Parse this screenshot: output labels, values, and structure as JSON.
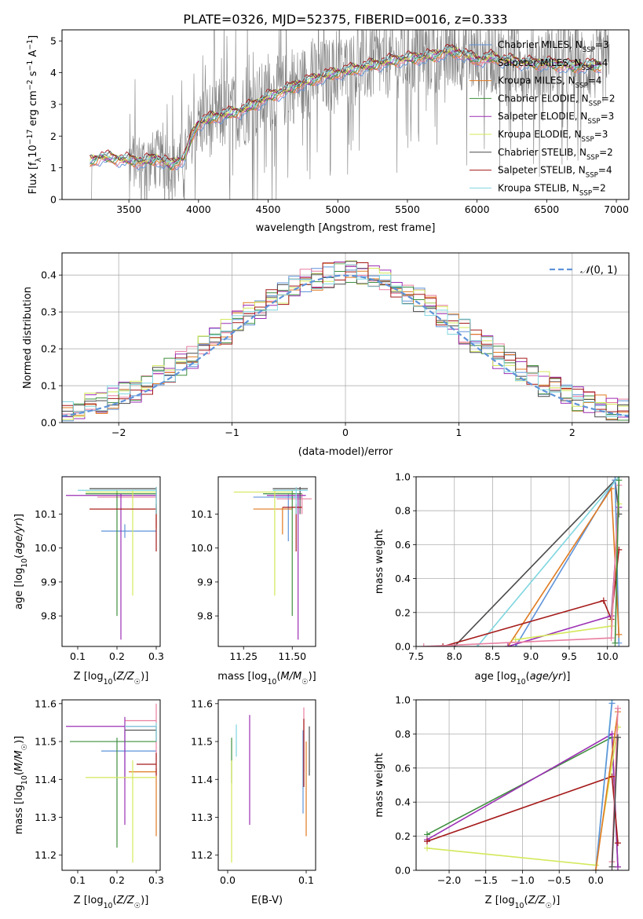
{
  "figure": {
    "title": "PLATE=0326, MJD=52375, FIBERID=0016, z=0.333"
  },
  "colors": {
    "Chabrier MILES": "#5f93d9",
    "Salpeter MILES": "#e87fa0",
    "Kroupa MILES": "#e07a21",
    "Chabrier ELODIE": "#3f8f3f",
    "Salpeter ELODIE": "#9c2fb4",
    "Kroupa ELODIE": "#d4e85a",
    "Chabrier STELIB": "#4a4a4a",
    "Salpeter STELIB": "#a51a1a",
    "Kroupa STELIB": "#7fd6df",
    "data": "#808080",
    "normal": "#5f93d9"
  },
  "chart_data": [
    {
      "id": "spectrum",
      "type": "line",
      "title": "PLATE=0326, MJD=52375, FIBERID=0016, z=0.333",
      "xlabel": "wavelength [Angstrom, rest frame]",
      "ylabel": "Flux [f_λ 10^-17 erg cm^-2 s^-1 A^-1]",
      "xlim": [
        3020,
        7090
      ],
      "ylim": [
        0,
        5.35
      ],
      "xticks": [
        3500,
        4000,
        4500,
        5000,
        5500,
        6000,
        6500,
        7000
      ],
      "yticks": [
        0,
        1,
        2,
        3,
        4,
        5
      ],
      "legend_position": "right",
      "legend": [
        {
          "label": "Chabrier MILES, N",
          "sub": "SSP",
          "tail": "=3"
        },
        {
          "label": "Salpeter MILES, N",
          "sub": "SSP",
          "tail": "=4"
        },
        {
          "label": "Kroupa MILES, N",
          "sub": "SSP",
          "tail": "=4"
        },
        {
          "label": "Chabrier ELODIE, N",
          "sub": "SSP",
          "tail": "=2"
        },
        {
          "label": "Salpeter ELODIE, N",
          "sub": "SSP",
          "tail": "=3"
        },
        {
          "label": "Kroupa ELODIE, N",
          "sub": "SSP",
          "tail": "=3"
        },
        {
          "label": "Chabrier STELIB, N",
          "sub": "SSP",
          "tail": "=2"
        },
        {
          "label": "Salpeter STELIB, N",
          "sub": "SSP",
          "tail": "=4"
        },
        {
          "label": "Kroupa STELIB, N",
          "sub": "SSP",
          "tail": "=2"
        }
      ],
      "model_continuum": {
        "x": [
          3220,
          3300,
          3400,
          3500,
          3600,
          3700,
          3800,
          3900,
          3950,
          4000,
          4100,
          4200,
          4300,
          4400,
          4500,
          4600,
          4700,
          4800,
          4900,
          5000,
          5100,
          5200,
          5300,
          5400,
          5500,
          5600,
          5700,
          5800,
          5900,
          6000,
          6100,
          6200,
          6300,
          6400,
          6500,
          6600,
          6700,
          6800,
          6900
        ],
        "y": [
          1.2,
          1.35,
          1.3,
          1.25,
          1.2,
          1.3,
          1.1,
          1.3,
          2.0,
          2.4,
          2.6,
          2.7,
          2.8,
          3.0,
          3.25,
          3.4,
          3.6,
          3.75,
          3.9,
          4.0,
          4.1,
          4.2,
          4.3,
          4.4,
          4.45,
          4.5,
          4.55,
          4.7,
          4.6,
          4.4,
          4.5,
          4.4,
          4.35,
          4.3,
          4.3,
          4.25,
          4.2,
          4.25,
          4.2
        ]
      },
      "data_range": [
        3220,
        6950
      ]
    },
    {
      "id": "residuals",
      "type": "line",
      "xlabel": "(data-model)/error",
      "ylabel": "Normed distribution",
      "xlim": [
        -2.5,
        2.5
      ],
      "ylim": [
        0,
        0.46
      ],
      "xticks": [
        -2,
        -1,
        0,
        1,
        2
      ],
      "yticks": [
        0.0,
        0.1,
        0.2,
        0.3,
        0.4
      ],
      "legend": "𝒩(0, 1)",
      "legend_position": "top-right",
      "grid": true,
      "bin_width": 0.1
    },
    {
      "id": "age-vs-Z",
      "type": "scatter",
      "xlabel": "Z [log10(Z/Z☉)]",
      "ylabel": "age [log10(age/yr)]",
      "xlim": [
        0.06,
        0.31
      ],
      "ylim": [
        9.71,
        10.21
      ],
      "xticks": [
        0.1,
        0.2,
        0.3
      ],
      "yticks": [
        9.8,
        9.9,
        10.0,
        10.1
      ],
      "points": [
        {
          "model": "Chabrier MILES",
          "x": 0.22,
          "y": 10.05,
          "xerr": [
            0.16,
            0.3
          ],
          "yerr": [
            10.03,
            10.07
          ]
        },
        {
          "model": "Salpeter MILES",
          "x": 0.3,
          "y": 10.15,
          "xerr": [
            0.15,
            0.3
          ],
          "yerr": [
            10.1,
            10.18
          ]
        },
        {
          "model": "Kroupa MILES",
          "x": 0.3,
          "y": 10.115,
          "xerr": [
            0.13,
            0.3
          ],
          "yerr": [
            10.06,
            10.12
          ]
        },
        {
          "model": "Chabrier ELODIE",
          "x": 0.2,
          "y": 10.16,
          "xerr": [
            0.12,
            0.3
          ],
          "yerr": [
            9.8,
            10.17
          ]
        },
        {
          "model": "Salpeter ELODIE",
          "x": 0.21,
          "y": 10.155,
          "xerr": [
            0.07,
            0.3
          ],
          "yerr": [
            9.73,
            10.16
          ]
        },
        {
          "model": "Kroupa ELODIE",
          "x": 0.24,
          "y": 10.165,
          "xerr": [
            0.12,
            0.3
          ],
          "yerr": [
            9.86,
            10.17
          ]
        },
        {
          "model": "Chabrier STELIB",
          "x": 0.3,
          "y": 10.175,
          "xerr": [
            0.13,
            0.3
          ],
          "yerr": [
            10.1,
            10.18
          ]
        },
        {
          "model": "Salpeter STELIB",
          "x": 0.3,
          "y": 10.115,
          "xerr": [
            0.13,
            0.3
          ],
          "yerr": [
            9.99,
            10.13
          ]
        },
        {
          "model": "Kroupa STELIB",
          "x": 0.3,
          "y": 10.17,
          "xerr": [
            0.1,
            0.3
          ],
          "yerr": [
            10.1,
            10.18
          ]
        }
      ]
    },
    {
      "id": "age-vs-mass",
      "type": "scatter",
      "xlabel": "mass [log10(M/M☉)]",
      "xlim": [
        11.12,
        11.62
      ],
      "ylim": [
        9.71,
        10.21
      ],
      "xticks": [
        11.25,
        11.5
      ],
      "yticks": [
        9.8,
        9.9,
        10.0,
        10.1
      ],
      "points": [
        {
          "model": "Chabrier MILES",
          "x": 11.48,
          "y": 10.15,
          "xerr": [
            11.3,
            11.55
          ],
          "yerr": [
            10.02,
            10.16
          ]
        },
        {
          "model": "Salpeter MILES",
          "x": 11.55,
          "y": 10.145,
          "xerr": [
            11.42,
            11.6
          ],
          "yerr": [
            10.1,
            10.16
          ]
        },
        {
          "model": "Kroupa MILES",
          "x": 11.45,
          "y": 10.115,
          "xerr": [
            11.3,
            11.5
          ],
          "yerr": [
            10.04,
            10.12
          ]
        },
        {
          "model": "Chabrier ELODIE",
          "x": 11.5,
          "y": 10.16,
          "xerr": [
            11.35,
            11.55
          ],
          "yerr": [
            9.8,
            10.17
          ]
        },
        {
          "model": "Salpeter ELODIE",
          "x": 11.53,
          "y": 10.155,
          "xerr": [
            11.37,
            11.57
          ],
          "yerr": [
            9.73,
            10.16
          ]
        },
        {
          "model": "Kroupa ELODIE",
          "x": 11.41,
          "y": 10.165,
          "xerr": [
            11.2,
            11.5
          ],
          "yerr": [
            9.86,
            10.17
          ]
        },
        {
          "model": "Chabrier STELIB",
          "x": 11.54,
          "y": 10.175,
          "xerr": [
            11.4,
            11.58
          ],
          "yerr": [
            10.1,
            10.18
          ]
        },
        {
          "model": "Salpeter STELIB",
          "x": 11.52,
          "y": 10.12,
          "xerr": [
            11.45,
            11.55
          ],
          "yerr": [
            9.99,
            10.13
          ]
        },
        {
          "model": "Kroupa STELIB",
          "x": 11.52,
          "y": 10.17,
          "xerr": [
            11.4,
            11.58
          ],
          "yerr": [
            10.1,
            10.18
          ]
        }
      ]
    },
    {
      "id": "weight-vs-age",
      "type": "line",
      "xlabel": "age [log10(age/yr)]",
      "ylabel": "mass weight",
      "xlim": [
        7.5,
        10.28
      ],
      "ylim": [
        0,
        1
      ],
      "xticks": [
        7.5,
        8.0,
        8.5,
        9.0,
        9.5,
        10.0
      ],
      "yticks": [
        0.0,
        0.2,
        0.4,
        0.6,
        0.8,
        1.0
      ],
      "grid": true,
      "series": [
        {
          "model": "Chabrier STELIB",
          "x": [
            8.0,
            10.1,
            10.15
          ],
          "y": [
            0.0,
            0.98,
            0.78
          ]
        },
        {
          "model": "Chabrier MILES",
          "x": [
            8.8,
            10.1,
            10.15
          ],
          "y": [
            0.0,
            0.98,
            0.02
          ]
        },
        {
          "model": "Kroupa MILES",
          "x": [
            8.7,
            10.05,
            10.15
          ],
          "y": [
            0.0,
            0.93,
            0.07
          ]
        },
        {
          "model": "Kroupa STELIB",
          "x": [
            8.3,
            10.15
          ],
          "y": [
            0.0,
            1.0
          ]
        },
        {
          "model": "Salpeter STELIB",
          "x": [
            7.85,
            9.95,
            10.05,
            10.15
          ],
          "y": [
            0.0,
            0.27,
            0.16,
            0.57
          ]
        },
        {
          "model": "Salpeter ELODIE",
          "x": [
            8.7,
            10.05,
            10.15
          ],
          "y": [
            0.0,
            0.18,
            0.82
          ]
        },
        {
          "model": "Kroupa ELODIE",
          "x": [
            8.8,
            10.05,
            10.15
          ],
          "y": [
            0.04,
            0.12,
            0.84
          ]
        },
        {
          "model": "Salpeter MILES",
          "x": [
            7.6,
            10.05,
            10.15
          ],
          "y": [
            0.0,
            0.05,
            0.95
          ]
        },
        {
          "model": "Chabrier ELODIE",
          "x": [
            10.1,
            10.15
          ],
          "y": [
            0.02,
            0.98
          ]
        }
      ]
    },
    {
      "id": "mass-vs-Z",
      "type": "scatter",
      "xlabel": "Z [log10(Z/Z☉)]",
      "ylabel": "mass [log10(M/M☉)]",
      "xlim": [
        0.06,
        0.31
      ],
      "ylim": [
        11.16,
        11.61
      ],
      "xticks": [
        0.1,
        0.2,
        0.3
      ],
      "yticks": [
        11.2,
        11.3,
        11.4,
        11.5,
        11.6
      ],
      "points": [
        {
          "model": "Chabrier MILES",
          "x": 0.22,
          "y": 11.475,
          "xerr": [
            0.16,
            0.3
          ],
          "yerr": [
            11.4,
            11.53
          ]
        },
        {
          "model": "Salpeter MILES",
          "x": 0.3,
          "y": 11.555,
          "xerr": [
            0.22,
            0.3
          ],
          "yerr": [
            11.45,
            11.6
          ]
        },
        {
          "model": "Kroupa MILES",
          "x": 0.3,
          "y": 11.42,
          "xerr": [
            0.23,
            0.3
          ],
          "yerr": [
            11.25,
            11.43
          ]
        },
        {
          "model": "Chabrier ELODIE",
          "x": 0.2,
          "y": 11.5,
          "xerr": [
            0.08,
            0.3
          ],
          "yerr": [
            11.22,
            11.51
          ]
        },
        {
          "model": "Salpeter ELODIE",
          "x": 0.22,
          "y": 11.54,
          "xerr": [
            0.07,
            0.3
          ],
          "yerr": [
            11.28,
            11.565
          ]
        },
        {
          "model": "Kroupa ELODIE",
          "x": 0.24,
          "y": 11.405,
          "xerr": [
            0.12,
            0.3
          ],
          "yerr": [
            11.18,
            11.45
          ]
        },
        {
          "model": "Chabrier STELIB",
          "x": 0.3,
          "y": 11.53,
          "xerr": [
            0.22,
            0.3
          ],
          "yerr": [
            11.5,
            11.54
          ]
        },
        {
          "model": "Salpeter STELIB",
          "x": 0.3,
          "y": 11.44,
          "xerr": [
            0.25,
            0.3
          ],
          "yerr": [
            11.41,
            11.47
          ]
        },
        {
          "model": "Kroupa STELIB",
          "x": 0.3,
          "y": 11.54,
          "xerr": [
            0.22,
            0.3
          ],
          "yerr": [
            11.5,
            11.55
          ]
        }
      ]
    },
    {
      "id": "mass-vs-EBV",
      "type": "scatter",
      "xlabel": "E(B-V)",
      "xlim": [
        -0.012,
        0.112
      ],
      "ylim": [
        11.16,
        11.61
      ],
      "xticks": [
        0.0,
        0.1
      ],
      "yticks": [
        11.2,
        11.3,
        11.4,
        11.5,
        11.6
      ],
      "points": [
        {
          "model": "Chabrier MILES",
          "x": 0.096,
          "y": 11.45,
          "yerr": [
            11.31,
            11.53
          ]
        },
        {
          "model": "Salpeter MILES",
          "x": 0.097,
          "y": 11.5,
          "yerr": [
            11.42,
            11.59
          ]
        },
        {
          "model": "Kroupa MILES",
          "x": 0.1,
          "y": 11.42,
          "yerr": [
            11.25,
            11.5
          ]
        },
        {
          "model": "Chabrier ELODIE",
          "x": 0.005,
          "y": 11.46,
          "yerr": [
            11.39,
            11.51
          ]
        },
        {
          "model": "Salpeter ELODIE",
          "x": 0.028,
          "y": 11.5,
          "yerr": [
            11.28,
            11.57
          ]
        },
        {
          "model": "Kroupa ELODIE",
          "x": 0.005,
          "y": 11.4,
          "yerr": [
            11.18,
            11.45
          ]
        },
        {
          "model": "Chabrier STELIB",
          "x": 0.104,
          "y": 11.5,
          "yerr": [
            11.41,
            11.54
          ]
        },
        {
          "model": "Salpeter STELIB",
          "x": 0.097,
          "y": 11.5,
          "yerr": [
            11.38,
            11.56
          ]
        },
        {
          "model": "Kroupa STELIB",
          "x": 0.011,
          "y": 11.5,
          "yerr": [
            11.46,
            11.545
          ]
        }
      ]
    },
    {
      "id": "weight-vs-Z",
      "type": "line",
      "xlabel": "Z [log10(Z/Z☉)]",
      "ylabel": "mass weight",
      "xlim": [
        -2.45,
        0.45
      ],
      "ylim": [
        0,
        1
      ],
      "xticks": [
        -2.0,
        -1.5,
        -1.0,
        -0.5,
        0.0
      ],
      "yticks": [
        0.0,
        0.2,
        0.4,
        0.6,
        0.8,
        1.0
      ],
      "grid": true,
      "series": [
        {
          "model": "Chabrier ELODIE",
          "x": [
            -2.3,
            0.22,
            0.3
          ],
          "y": [
            0.21,
            0.78,
            0.02
          ]
        },
        {
          "model": "Salpeter ELODIE",
          "x": [
            -2.3,
            0.22,
            0.3
          ],
          "y": [
            0.18,
            0.8,
            0.02
          ]
        },
        {
          "model": "Kroupa ELODIE",
          "x": [
            -2.3,
            0.0,
            0.3
          ],
          "y": [
            0.13,
            0.03,
            0.84
          ]
        },
        {
          "model": "Salpeter STELIB",
          "x": [
            -2.3,
            0.22,
            0.3
          ],
          "y": [
            0.17,
            0.55,
            0.16
          ]
        },
        {
          "model": "Kroupa STELIB",
          "x": [
            0.0,
            0.22
          ],
          "y": [
            0.0,
            1.0
          ]
        },
        {
          "model": "Chabrier MILES",
          "x": [
            0.0,
            0.22
          ],
          "y": [
            0.0,
            0.98
          ]
        },
        {
          "model": "Kroupa MILES",
          "x": [
            0.0,
            0.3
          ],
          "y": [
            0.0,
            0.93
          ]
        },
        {
          "model": "Salpeter MILES",
          "x": [
            0.22,
            0.3
          ],
          "y": [
            0.05,
            0.95
          ]
        },
        {
          "model": "Chabrier STELIB",
          "x": [
            0.22,
            0.3
          ],
          "y": [
            0.02,
            0.78
          ]
        }
      ]
    }
  ]
}
